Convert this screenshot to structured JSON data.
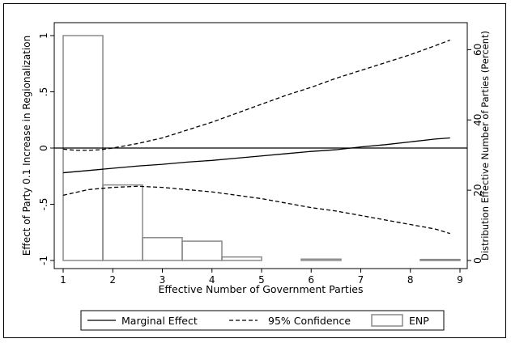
{
  "chart_data": {
    "type": "line",
    "xlabel": "Effective Number of Government Parties",
    "ylabel_left": "Effect of Party 0.1 Increase in Regionalization",
    "ylabel_right": "Distribution Effective Number of Parties (Percent)",
    "x_ticks": [
      1,
      2,
      3,
      4,
      5,
      6,
      7,
      8,
      9
    ],
    "y_left_ticks": [
      {
        "value": 1,
        "label": "1"
      },
      {
        "value": 0.5,
        "label": ".5"
      },
      {
        "value": 0,
        "label": "0"
      },
      {
        "value": -0.5,
        "label": "-.5"
      },
      {
        "value": -1,
        "label": "-1"
      }
    ],
    "y_right_ticks": [
      {
        "value": 0,
        "label": "0"
      },
      {
        "value": 20,
        "label": "20"
      },
      {
        "value": 40,
        "label": "40"
      },
      {
        "value": 60,
        "label": "60"
      }
    ],
    "xlim": [
      1,
      9
    ],
    "ylim_left": [
      -1,
      1
    ],
    "ylim_right": [
      0,
      64
    ],
    "zero_line": 0,
    "series": [
      {
        "name": "Marginal Effect",
        "style": "solid",
        "x": [
          1,
          1.5,
          2,
          2.5,
          3,
          3.5,
          4,
          4.5,
          5,
          5.5,
          6,
          6.5,
          7,
          7.5,
          8,
          8.5,
          8.8
        ],
        "y": [
          -0.22,
          -0.2,
          -0.18,
          -0.16,
          -0.145,
          -0.125,
          -0.11,
          -0.09,
          -0.07,
          -0.05,
          -0.03,
          -0.015,
          0.01,
          0.03,
          0.055,
          0.08,
          0.09
        ]
      },
      {
        "name": "95% Confidence",
        "style": "dashed",
        "x": [
          1,
          1.25,
          1.5,
          1.75,
          2,
          2.5,
          3,
          3.5,
          4,
          4.5,
          5,
          5.5,
          6,
          6.5,
          7,
          7.5,
          8,
          8.5,
          8.8
        ],
        "y": [
          -0.01,
          -0.02,
          -0.02,
          -0.015,
          0.0,
          0.04,
          0.09,
          0.16,
          0.23,
          0.31,
          0.39,
          0.47,
          0.54,
          0.62,
          0.69,
          0.76,
          0.83,
          0.91,
          0.96
        ]
      },
      {
        "name": "95% Confidence lower",
        "style": "dashed",
        "x": [
          1,
          1.5,
          2,
          2.5,
          3,
          3.5,
          4,
          4.5,
          5,
          5.5,
          6,
          6.5,
          7,
          7.5,
          8,
          8.5,
          8.8
        ],
        "y": [
          -0.42,
          -0.37,
          -0.35,
          -0.34,
          -0.35,
          -0.37,
          -0.39,
          -0.42,
          -0.45,
          -0.49,
          -0.53,
          -0.56,
          -0.6,
          -0.64,
          -0.68,
          -0.72,
          -0.76
        ]
      }
    ],
    "histogram": {
      "name": "ENP",
      "bins": [
        {
          "x0": 1.0,
          "x1": 1.8,
          "value": 64
        },
        {
          "x0": 1.8,
          "x1": 2.6,
          "value": 21.5
        },
        {
          "x0": 2.6,
          "x1": 3.4,
          "value": 6.5
        },
        {
          "x0": 3.4,
          "x1": 4.2,
          "value": 5.5
        },
        {
          "x0": 4.2,
          "x1": 5.0,
          "value": 1.0
        },
        {
          "x0": 5.0,
          "x1": 5.8,
          "value": 0
        },
        {
          "x0": 5.8,
          "x1": 6.6,
          "value": 0.4
        },
        {
          "x0": 6.6,
          "x1": 7.4,
          "value": 0
        },
        {
          "x0": 7.4,
          "x1": 8.2,
          "value": 0
        },
        {
          "x0": 8.2,
          "x1": 9.0,
          "value": 0.3
        }
      ]
    },
    "legend": [
      "Marginal Effect",
      "95% Confidence",
      "ENP"
    ],
    "legend_position": "bottom"
  }
}
